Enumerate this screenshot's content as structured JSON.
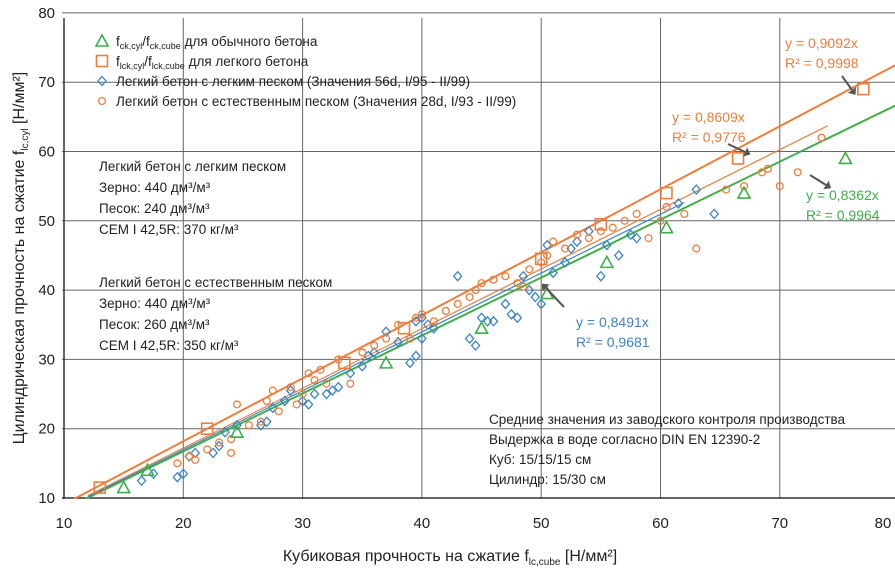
{
  "chart_data": {
    "type": "scatter",
    "xlabel": "Кубиковая прочность на сжатие f",
    "xlabel_sub": "lc,cube",
    "xlabel_unit": " [Н/мм²]",
    "ylabel": "Цилиндрическая прочность на сжатие f",
    "ylabel_sub": "lc,cyl",
    "ylabel_unit": " [Н/мм²]",
    "xlim": [
      10,
      80
    ],
    "ylim": [
      10,
      80
    ],
    "xticks": [
      "10",
      "20",
      "30",
      "40",
      "50",
      "60",
      "70",
      "80"
    ],
    "yticks": [
      "10",
      "20",
      "30",
      "40",
      "50",
      "60",
      "70",
      "80"
    ],
    "grid": true,
    "legend_position": "top-left",
    "legend": [
      {
        "series": 0,
        "text_main": "f",
        "sub1": "ck,cyl",
        "mid": "/f",
        "sub2": "ck,cube",
        "rest": " для обычного бетона"
      },
      {
        "series": 1,
        "text_main": "f",
        "sub1": "lck,cyl",
        "mid": "/f",
        "sub2": "lck,cube",
        "rest": " для легкого бетона"
      },
      {
        "series": 2,
        "text_main": "Легкий бетон с легким песком (Значения 56d, I/95 - II/99)"
      },
      {
        "series": 3,
        "text_main": "Легкий бетон с естественным песком (Значения 28d, I/93 - II/99)"
      }
    ],
    "series": [
      {
        "marker": "triangle",
        "color": "#3fae49",
        "fit": {
          "slope": 0.8362,
          "label": "y = 0,8362x",
          "r2": "R² = 0,9964"
        },
        "points": [
          [
            15,
            11.5
          ],
          [
            17,
            14
          ],
          [
            24.5,
            19.5
          ],
          [
            37,
            29.5
          ],
          [
            45,
            34.5
          ],
          [
            50.5,
            39.5
          ],
          [
            55.5,
            44
          ],
          [
            60.5,
            49
          ],
          [
            67,
            54
          ],
          [
            75.5,
            59
          ]
        ]
      },
      {
        "marker": "square",
        "color": "#ef7d3c",
        "fit": {
          "slope": 0.9092,
          "label": "y = 0,9092x",
          "r2": "R² = 0,9998"
        },
        "points": [
          [
            13,
            11.5
          ],
          [
            22,
            20
          ],
          [
            33.5,
            29.5
          ],
          [
            38.5,
            34.5
          ],
          [
            50,
            44.5
          ],
          [
            55,
            49.5
          ],
          [
            60.5,
            54
          ],
          [
            66.5,
            59
          ],
          [
            77,
            69
          ]
        ]
      },
      {
        "marker": "diamond",
        "color": "#3d84c6",
        "fit": {
          "slope": 0.8491,
          "label": "y = 0,8491x",
          "r2": "R² = 0,9681"
        },
        "points": [
          [
            16.5,
            12.5
          ],
          [
            17.5,
            13.5
          ],
          [
            19.5,
            13
          ],
          [
            20,
            13.5
          ],
          [
            20.5,
            16
          ],
          [
            21,
            16.5
          ],
          [
            22.5,
            16.5
          ],
          [
            23,
            17.5
          ],
          [
            23.5,
            19.5
          ],
          [
            24.5,
            20.5
          ],
          [
            26.5,
            20.5
          ],
          [
            27,
            21
          ],
          [
            27.5,
            23
          ],
          [
            28.5,
            24
          ],
          [
            29,
            25.5
          ],
          [
            30,
            24
          ],
          [
            30.5,
            23.5
          ],
          [
            31,
            25
          ],
          [
            32,
            25
          ],
          [
            32.5,
            25.5
          ],
          [
            33,
            26
          ],
          [
            34,
            28
          ],
          [
            35,
            29
          ],
          [
            35.5,
            30.5
          ],
          [
            36,
            31
          ],
          [
            37,
            34
          ],
          [
            38,
            32.5
          ],
          [
            39,
            29.5
          ],
          [
            39.5,
            30.5
          ],
          [
            39.5,
            35.5
          ],
          [
            40,
            36
          ],
          [
            40,
            33
          ],
          [
            40.5,
            35
          ],
          [
            41,
            34.5
          ],
          [
            43,
            42
          ],
          [
            44,
            33
          ],
          [
            44.5,
            32
          ],
          [
            45,
            36
          ],
          [
            45.5,
            35.5
          ],
          [
            46,
            35.5
          ],
          [
            47,
            38
          ],
          [
            47.5,
            36.5
          ],
          [
            48,
            36
          ],
          [
            48.5,
            42
          ],
          [
            49,
            40
          ],
          [
            49.5,
            39
          ],
          [
            50,
            38
          ],
          [
            50.5,
            46.5
          ],
          [
            51,
            42.5
          ],
          [
            52,
            44
          ],
          [
            52.5,
            46
          ],
          [
            53,
            47
          ],
          [
            54,
            48.5
          ],
          [
            55,
            42
          ],
          [
            55.5,
            46.5
          ],
          [
            56.5,
            45
          ],
          [
            57.5,
            48
          ],
          [
            58,
            47.5
          ],
          [
            61.5,
            52.5
          ],
          [
            63,
            54.5
          ],
          [
            64.5,
            51
          ]
        ],
        "note": "approximate reading of scatter cloud"
      },
      {
        "marker": "circle",
        "color": "#ef7d3c",
        "fit": {
          "slope": 0.8609,
          "label": "y = 0,8609x",
          "r2": "R² = 0,9776"
        },
        "points": [
          [
            19.5,
            15
          ],
          [
            20.5,
            16
          ],
          [
            21,
            15.5
          ],
          [
            22,
            17
          ],
          [
            23,
            18
          ],
          [
            24,
            18.5
          ],
          [
            24,
            16.5
          ],
          [
            24.5,
            23.5
          ],
          [
            25.5,
            20.5
          ],
          [
            26.5,
            21
          ],
          [
            27,
            24
          ],
          [
            27.5,
            25.5
          ],
          [
            28,
            22.5
          ],
          [
            29,
            26
          ],
          [
            29.5,
            23.5
          ],
          [
            30,
            25
          ],
          [
            30.5,
            28
          ],
          [
            31,
            27
          ],
          [
            31.5,
            28.5
          ],
          [
            32,
            26.5
          ],
          [
            33,
            30
          ],
          [
            34,
            26.5
          ],
          [
            35,
            31
          ],
          [
            36,
            32
          ],
          [
            37,
            33
          ],
          [
            38,
            35
          ],
          [
            39,
            33
          ],
          [
            39.5,
            36
          ],
          [
            40,
            36.5
          ],
          [
            41,
            35.5
          ],
          [
            42,
            37
          ],
          [
            43,
            38
          ],
          [
            44,
            39
          ],
          [
            44.5,
            40
          ],
          [
            45,
            41
          ],
          [
            46,
            41.5
          ],
          [
            47,
            42
          ],
          [
            48,
            41
          ],
          [
            48.5,
            40.5
          ],
          [
            49,
            43
          ],
          [
            50,
            44
          ],
          [
            50.5,
            45
          ],
          [
            51,
            47
          ],
          [
            52,
            46
          ],
          [
            53,
            48
          ],
          [
            54,
            47.5
          ],
          [
            55,
            48.5
          ],
          [
            56,
            49
          ],
          [
            57,
            50
          ],
          [
            58,
            51
          ],
          [
            59,
            47.5
          ],
          [
            60,
            50
          ],
          [
            60.5,
            52
          ],
          [
            62,
            51
          ],
          [
            63,
            46
          ],
          [
            65.5,
            54.5
          ],
          [
            67,
            55
          ],
          [
            68.5,
            57
          ],
          [
            69,
            57.5
          ],
          [
            70,
            55
          ],
          [
            71.5,
            57
          ],
          [
            73.5,
            62
          ]
        ]
      }
    ],
    "annotations": {
      "lightsand": [
        "Легкий бетон с легким песком",
        "Зерно: 440 дм³/м³",
        "Песок: 240 дм³/м³",
        "CEM I 42,5R: 370 кг/м³"
      ],
      "natsand": [
        "Легкий бетон с естественным песком",
        "Зерно: 440 дм³/м³",
        "Песок: 260 дм³/м³",
        "CEM I 42,5R: 350 кг/м³"
      ],
      "factory": [
        "Средние значения из заводского контроля производства",
        "Выдержка в воде согласно DIN EN 12390-2",
        "Куб: 15/15/15 см",
        "Цилиндр: 15/30 см"
      ]
    }
  }
}
